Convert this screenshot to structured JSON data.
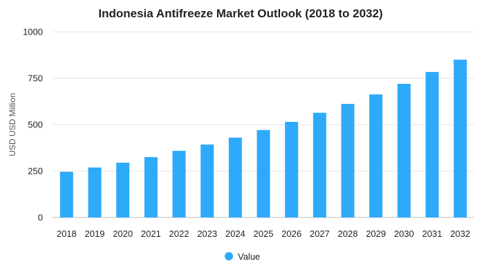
{
  "chart_data": {
    "type": "bar",
    "title": "Indonesia Antifreeze Market Outlook (2018 to 2032)",
    "ylabel": "USD USD Million",
    "xlabel": "",
    "categories": [
      "2018",
      "2019",
      "2020",
      "2021",
      "2022",
      "2023",
      "2024",
      "2025",
      "2026",
      "2027",
      "2028",
      "2029",
      "2030",
      "2031",
      "2032"
    ],
    "series": [
      {
        "name": "Value",
        "values": [
          246,
          269,
          295,
          325,
          359,
          393,
          430,
          471,
          515,
          564,
          612,
          663,
          720,
          784,
          850
        ]
      }
    ],
    "ylim": [
      0,
      1000
    ],
    "yticks": [
      "0",
      "250",
      "500",
      "750",
      "1000"
    ],
    "grid": true,
    "legend_position": "bottom-center",
    "bar_color": "#2EAAFA"
  }
}
